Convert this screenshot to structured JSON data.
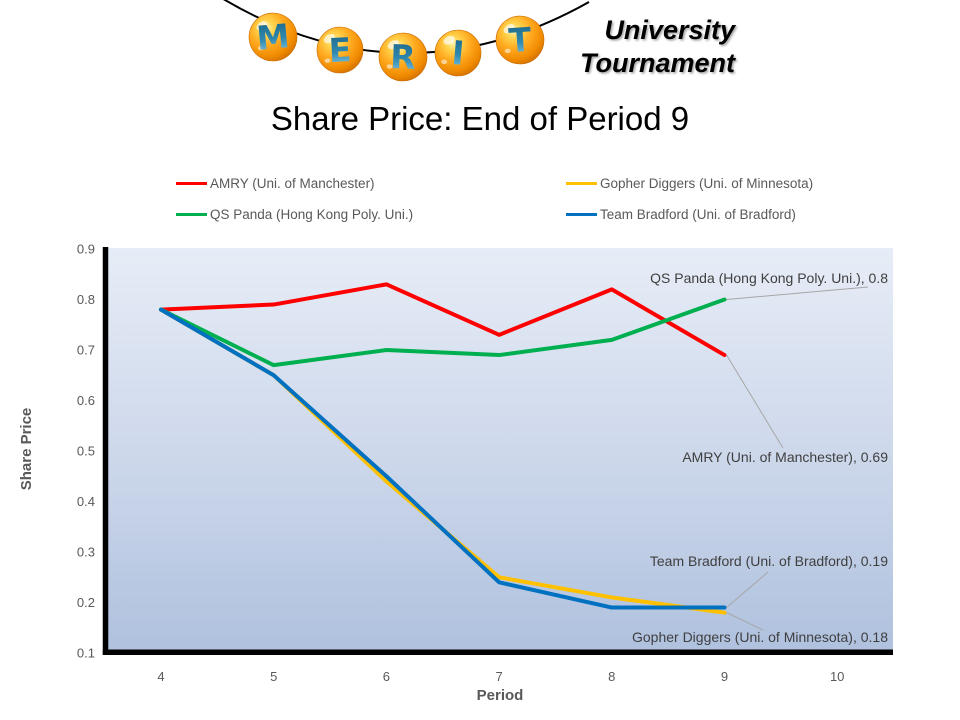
{
  "header": {
    "logo_letters": [
      "M",
      "E",
      "R",
      "I",
      "T"
    ],
    "org_line1": "University",
    "org_line2": "Tournament"
  },
  "title": "Share Price: End of Period 9",
  "colors": {
    "red": "#FF0000",
    "gold": "#FFC000",
    "green": "#00B050",
    "blue": "#0070C0",
    "axis_text": "#595959",
    "label_text": "#3F3F3F",
    "leader_line": "#A6A6A6",
    "plot_bg_top": "#E7EDF7",
    "plot_bg_bottom": "#AFC1DE"
  },
  "legend": {
    "items": [
      {
        "label": "AMRY (Uni. of Manchester)",
        "color": "#FF0000"
      },
      {
        "label": "Gopher Diggers (Uni. of Minnesota)",
        "color": "#FFC000"
      },
      {
        "label": "QS Panda (Hong Kong Poly. Uni.)",
        "color": "#00B050"
      },
      {
        "label": "Team Bradford (Uni. of Bradford)",
        "color": "#0070C0"
      }
    ]
  },
  "chart_data": {
    "type": "line",
    "title": "Share Price: End of Period 9",
    "xlabel": "Period",
    "ylabel": "Share Price",
    "x": [
      4,
      5,
      6,
      7,
      8,
      9
    ],
    "x_ticks": [
      4,
      5,
      6,
      7,
      8,
      9,
      10
    ],
    "y_ticks": [
      0.9,
      0.8,
      0.7,
      0.6,
      0.5,
      0.4,
      0.3,
      0.2,
      0.1
    ],
    "xlim": [
      3.5,
      10.5
    ],
    "ylim": [
      0.1,
      0.9
    ],
    "grid": false,
    "legend_position": "top",
    "series": [
      {
        "name": "AMRY (Uni. of Manchester)",
        "color": "#FF0000",
        "values": [
          0.78,
          0.79,
          0.83,
          0.73,
          0.82,
          0.69
        ]
      },
      {
        "name": "Gopher Diggers (Uni. of Minnesota)",
        "color": "#FFC000",
        "values": [
          0.78,
          0.65,
          0.44,
          0.25,
          0.21,
          0.18
        ]
      },
      {
        "name": "QS Panda (Hong Kong Poly. Uni.)",
        "color": "#00B050",
        "values": [
          0.78,
          0.67,
          0.7,
          0.69,
          0.72,
          0.8
        ]
      },
      {
        "name": "Team Bradford (Uni. of Bradford)",
        "color": "#0070C0",
        "values": [
          0.78,
          0.65,
          0.45,
          0.24,
          0.19,
          0.19
        ]
      }
    ],
    "end_labels": [
      {
        "series": "QS Panda (Hong Kong Poly. Uni.)",
        "value": 0.8,
        "text": "QS Panda (Hong Kong Poly. Uni.), 0.8"
      },
      {
        "series": "AMRY (Uni. of Manchester)",
        "value": 0.69,
        "text": "AMRY (Uni. of Manchester), 0.69"
      },
      {
        "series": "Team Bradford (Uni. of Bradford)",
        "value": 0.19,
        "text": "Team Bradford (Uni. of Bradford), 0.19"
      },
      {
        "series": "Gopher Diggers (Uni. of Minnesota)",
        "value": 0.18,
        "text": "Gopher Diggers (Uni. of Minnesota), 0.18"
      }
    ]
  }
}
